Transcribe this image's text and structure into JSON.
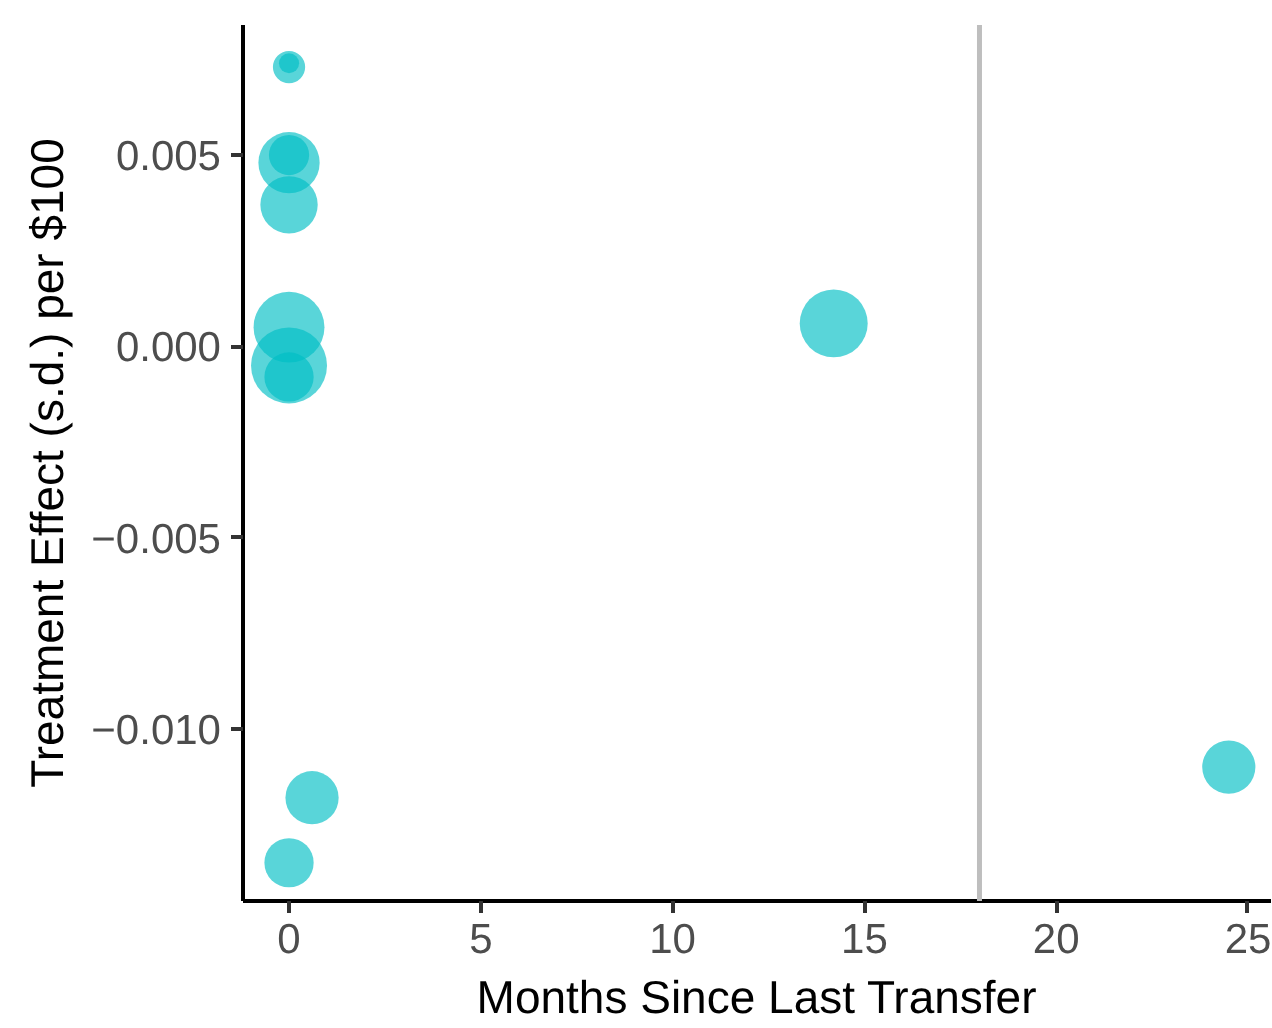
{
  "chart_data": {
    "type": "bubble",
    "xlabel": "Months Since Last Transfer",
    "ylabel": "Treatment Effect (s.d.) per $100",
    "x": [
      0,
      0,
      0,
      0,
      0,
      0,
      0,
      0,
      14.2,
      24.5,
      0.6,
      0
    ],
    "values": [
      0.0073,
      0.0074,
      0.0048,
      0.005,
      0.0037,
      0.0005,
      -0.0005,
      -0.0008,
      0.0006,
      -0.011,
      -0.0118,
      -0.0135
    ],
    "sizes": [
      0.18,
      0.07,
      0.65,
      0.28,
      0.57,
      0.87,
      1,
      0.42,
      0.8,
      0.49,
      0.49,
      0.42
    ],
    "color": "#00bfc4",
    "xlim": [
      -1.2,
      25.6
    ],
    "ylim": [
      -0.0145,
      0.0084
    ],
    "xticks": [
      0,
      5,
      10,
      15,
      20,
      25
    ],
    "yticks": [
      {
        "value": -0.01,
        "label": "−0.010"
      },
      {
        "value": -0.005,
        "label": "−0.005"
      },
      {
        "value": 0,
        "label": "0.000"
      },
      0.005
    ],
    "ref_lines": [
      {
        "axis": "x",
        "value": 18,
        "color": "#bebebe"
      }
    ],
    "grid": false
  }
}
